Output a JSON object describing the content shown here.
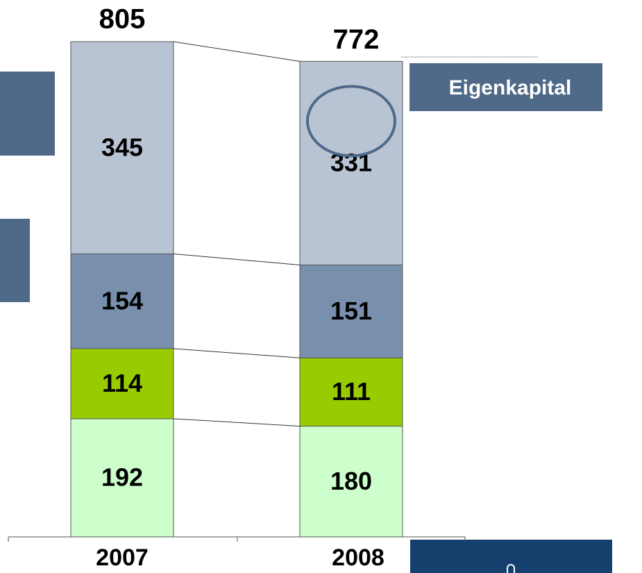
{
  "chart_data": {
    "type": "bar",
    "stacked": true,
    "categories": [
      "2007",
      "2008"
    ],
    "series": [
      {
        "name": null,
        "color": "#ccffcc",
        "values": [
          192,
          180
        ]
      },
      {
        "name": null,
        "color": "#99cc00",
        "values": [
          114,
          111
        ]
      },
      {
        "name": null,
        "color": "#7890ad",
        "values": [
          154,
          151
        ]
      },
      {
        "name": "Eigenkapital",
        "color": "#b8c4d4",
        "values": [
          345,
          331
        ]
      }
    ],
    "totals": [
      805,
      772
    ],
    "ylim": [
      0,
      805
    ]
  }
}
